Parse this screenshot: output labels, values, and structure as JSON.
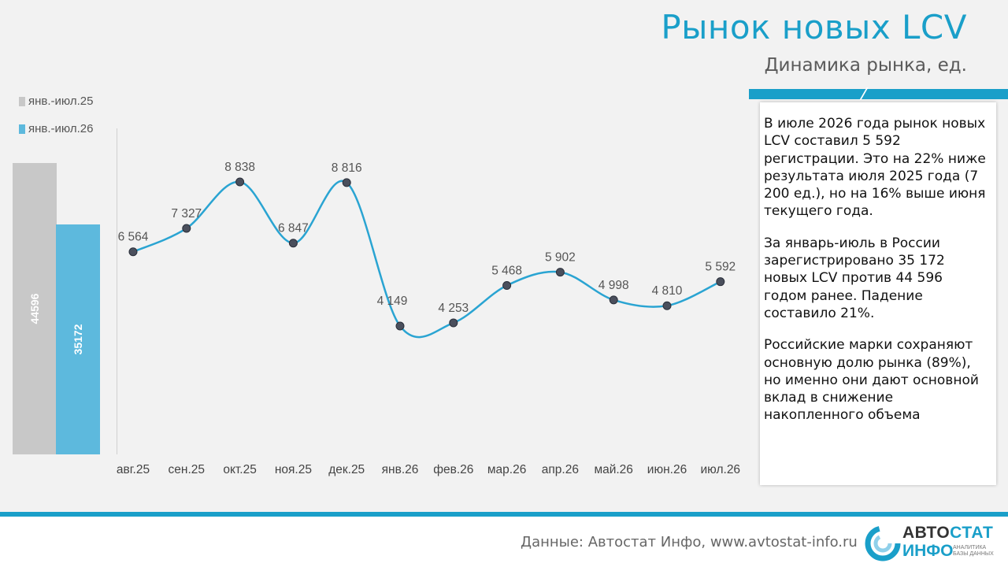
{
  "header": {
    "title": "Рынок новых LCV",
    "subtitle": "Динамика рынка, ед."
  },
  "legend": [
    {
      "label": "янв.-июл.25",
      "color": "#c8c8c8"
    },
    {
      "label": "янв.-июл.26",
      "color": "#5db9dd"
    }
  ],
  "info": {
    "p1": "В июле 2026 года рынок новых LCV составил 5 592 регистрации. Это на 22% ниже результата июля 2025 года (7 200 ед.), но на 16% выше июня текущего года.",
    "p2": "За январь-июль в России зарегистрировано 35 172 новых LCV против 44 596 годом ранее. Падение составило 21%.",
    "p3": "Российские марки сохраняют основную долю рынка (89%), но именно они дают основной вклад в снижение накопленного объема"
  },
  "footer": {
    "source": "Данные: Автостат Инфо, www.avtostat-info.ru",
    "logo_a": "АВТО",
    "logo_b": "СТАТ",
    "logo_c": "ИНФО",
    "logo_small1": "АНАЛИТИКА",
    "logo_small2": "БАЗЫ ДАННЫХ"
  },
  "colors": {
    "accent": "#1a9fc9",
    "line": "#2aa4d2",
    "bar_prev": "#c8c8c8",
    "bar_curr": "#5db9dd"
  },
  "chart_data": [
    {
      "type": "bar",
      "categories": [
        "янв.-июл.25",
        "янв.-июл.26"
      ],
      "values": [
        44596,
        35172
      ],
      "labels": [
        "44596",
        "35172"
      ]
    },
    {
      "type": "line",
      "categories": [
        "авг.25",
        "сен.25",
        "окт.25",
        "ноя.25",
        "дек.25",
        "янв.26",
        "фев.26",
        "мар.26",
        "апр.26",
        "май.26",
        "июн.26",
        "июл.26"
      ],
      "values": [
        6564,
        7327,
        8838,
        6847,
        8816,
        4149,
        4253,
        5468,
        5902,
        4998,
        4810,
        5592
      ],
      "labels": [
        "6 564",
        "7 327",
        "8 838",
        "6 847",
        "8 816",
        "4 149",
        "4 253",
        "5 468",
        "5 902",
        "4 998",
        "4 810",
        "5 592"
      ]
    }
  ]
}
